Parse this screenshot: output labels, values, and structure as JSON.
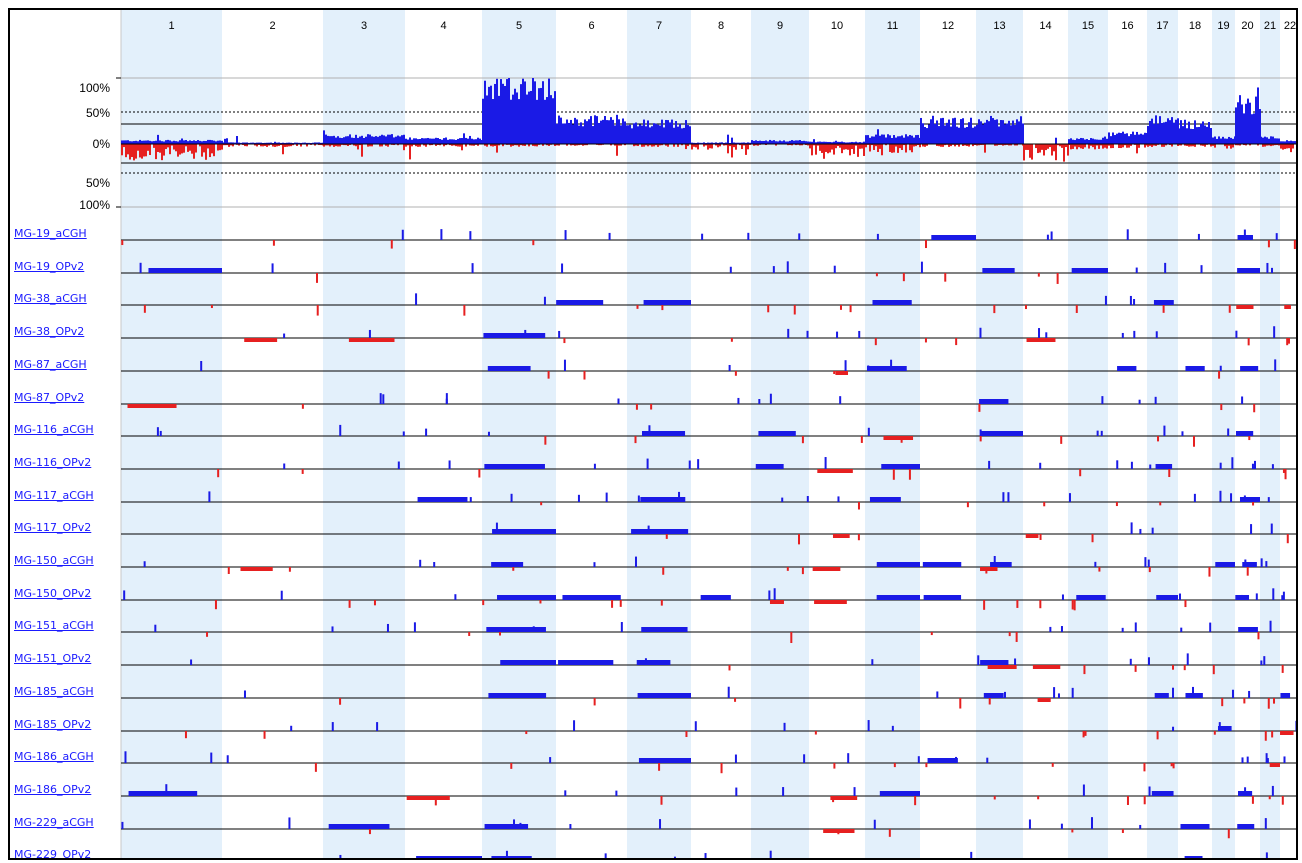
{
  "chart_data": {
    "type": "bar",
    "chromosomes": [
      "1",
      "2",
      "3",
      "4",
      "5",
      "6",
      "7",
      "8",
      "9",
      "10",
      "11",
      "12",
      "13",
      "14",
      "15",
      "16",
      "17",
      "18",
      "19",
      "20",
      "21",
      "22"
    ],
    "summary_axis_labels": [
      "100%",
      "50%",
      "0%",
      "50%",
      "100%"
    ],
    "samples": [
      "MG-19_aCGH",
      "MG-19_OPv2",
      "MG-38_aCGH",
      "MG-38_OPv2",
      "MG-87_aCGH",
      "MG-87_OPv2",
      "MG-116_aCGH",
      "MG-116_OPv2",
      "MG-117_aCGH",
      "MG-117_OPv2",
      "MG-150_aCGH",
      "MG-150_OPv2",
      "MG-151_aCGH",
      "MG-151_OPv2",
      "MG-185_aCGH",
      "MG-185_OPv2",
      "MG-186_aCGH",
      "MG-186_OPv2",
      "MG-229_aCGH",
      "MG-229_OPv2"
    ],
    "gain_frequency_by_chromosome": [
      {
        "chr": "1",
        "percent": 5
      },
      {
        "chr": "2",
        "percent": 2
      },
      {
        "chr": "3",
        "percent": 12
      },
      {
        "chr": "4",
        "percent": 8
      },
      {
        "chr": "5",
        "percent": 88
      },
      {
        "chr": "6",
        "percent": 35
      },
      {
        "chr": "7",
        "percent": 30
      },
      {
        "chr": "8",
        "percent": 2
      },
      {
        "chr": "9",
        "percent": 5
      },
      {
        "chr": "10",
        "percent": 3
      },
      {
        "chr": "11",
        "percent": 12
      },
      {
        "chr": "12",
        "percent": 32
      },
      {
        "chr": "13",
        "percent": 35
      },
      {
        "chr": "14",
        "percent": 0
      },
      {
        "chr": "15",
        "percent": 8
      },
      {
        "chr": "16",
        "percent": 15
      },
      {
        "chr": "17",
        "percent": 35
      },
      {
        "chr": "18",
        "percent": 30
      },
      {
        "chr": "19",
        "percent": 10
      },
      {
        "chr": "20",
        "percent": 60
      },
      {
        "chr": "21",
        "percent": 10
      },
      {
        "chr": "22",
        "percent": 5
      }
    ],
    "loss_frequency_by_chromosome": [
      {
        "chr": "1",
        "percent": 30
      },
      {
        "chr": "2",
        "percent": 5
      },
      {
        "chr": "3",
        "percent": 5
      },
      {
        "chr": "4",
        "percent": 5
      },
      {
        "chr": "5",
        "percent": 5
      },
      {
        "chr": "6",
        "percent": 3
      },
      {
        "chr": "7",
        "percent": 5
      },
      {
        "chr": "8",
        "percent": 10
      },
      {
        "chr": "9",
        "percent": 3
      },
      {
        "chr": "10",
        "percent": 25
      },
      {
        "chr": "11",
        "percent": 15
      },
      {
        "chr": "12",
        "percent": 5
      },
      {
        "chr": "13",
        "percent": 3
      },
      {
        "chr": "14",
        "percent": 30
      },
      {
        "chr": "15",
        "percent": 10
      },
      {
        "chr": "16",
        "percent": 8
      },
      {
        "chr": "17",
        "percent": 5
      },
      {
        "chr": "18",
        "percent": 5
      },
      {
        "chr": "19",
        "percent": 8
      },
      {
        "chr": "20",
        "percent": 3
      },
      {
        "chr": "21",
        "percent": 5
      },
      {
        "chr": "22",
        "percent": 15
      }
    ],
    "colors": {
      "gain": "#1a1ae6",
      "loss": "#e62020",
      "shade": "#e3f0fb"
    }
  }
}
